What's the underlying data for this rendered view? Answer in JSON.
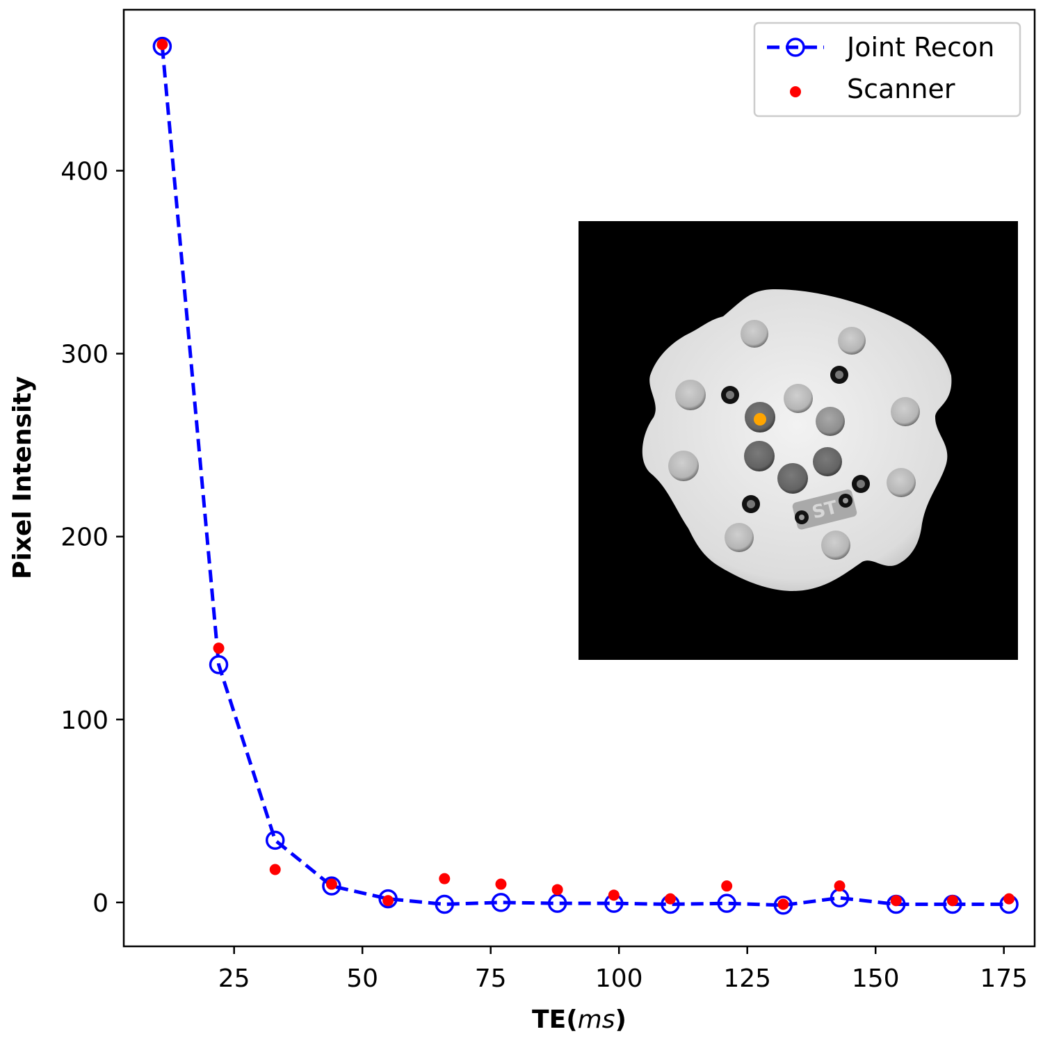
{
  "chart_data": {
    "type": "line",
    "title": "",
    "xlabel_main": "TE(",
    "xlabel_italic": "ms",
    "xlabel_close": ")",
    "ylabel": "Pixel Intensity",
    "xlim": [
      3.5,
      181
    ],
    "ylim": [
      -24,
      488
    ],
    "xticks": [
      25,
      50,
      75,
      100,
      125,
      150,
      175
    ],
    "yticks": [
      0,
      100,
      200,
      300,
      400
    ],
    "grid": false,
    "legend_position": "top-right",
    "series": [
      {
        "name": "Joint Recon",
        "style": "dashed line with open circle markers",
        "color": "#0000ff",
        "x": [
          11,
          22,
          33,
          44,
          55,
          66,
          77,
          88,
          99,
          110,
          121,
          132,
          143,
          154,
          165,
          176
        ],
        "y": [
          468,
          130,
          34,
          9,
          2,
          -1,
          0,
          -0.5,
          -0.5,
          -1,
          -0.5,
          -1.5,
          2.5,
          -1,
          -1,
          -1
        ]
      },
      {
        "name": "Scanner",
        "style": "filled dot markers",
        "color": "#ff0000",
        "x": [
          11,
          22,
          33,
          44,
          55,
          66,
          77,
          88,
          99,
          110,
          121,
          132,
          143,
          154,
          165,
          176
        ],
        "y": [
          469,
          139,
          18,
          10,
          1,
          13,
          10,
          7,
          4,
          2,
          9,
          -1,
          9,
          1,
          1,
          2
        ]
      }
    ],
    "inset": {
      "description_icon": "phantom-mri-slice-icon",
      "highlight_color": "#ffa500"
    }
  }
}
